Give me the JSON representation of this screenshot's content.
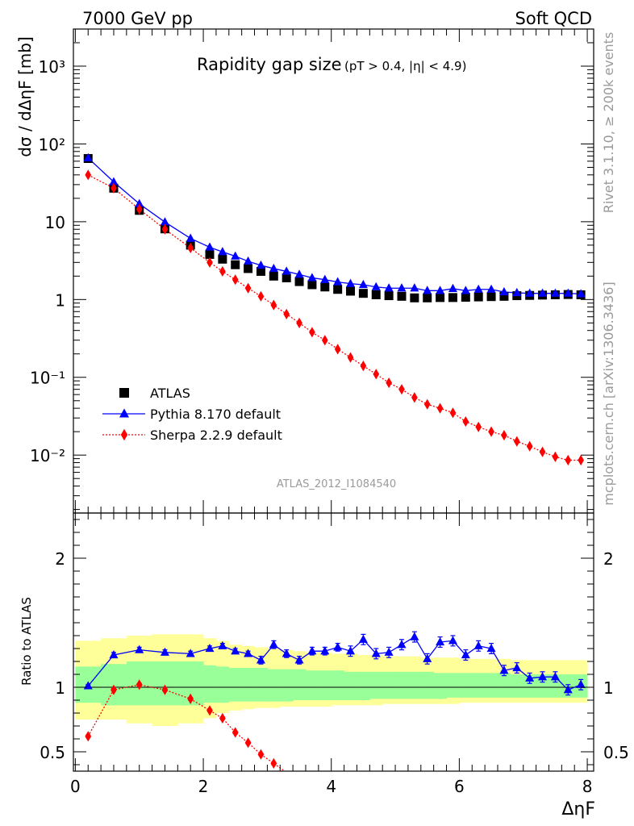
{
  "header": {
    "energy_label": "7000 GeV pp",
    "process_label": "Soft QCD",
    "rivet_label": "Rivet 3.1.10, ≥ 200k events",
    "mcplots_label": "mcplots.cern.ch [arXiv:1306.3436]",
    "analysis_label": "ATLAS_2012_I1084540"
  },
  "chart_data": [
    {
      "panel": "main",
      "type": "scatter",
      "title_main": "Rapidity gap size",
      "title_cuts": "(pT > 0.4, |η| < 4.9)",
      "ylabel": "dσ / dΔηF [mb]",
      "yscale": "log",
      "ylim": [
        0.0018,
        3000
      ],
      "xlim": [
        -0.03,
        8.1
      ],
      "y_tick_labels": [
        "10⁻²",
        "10⁻¹",
        "1",
        "10",
        "10²",
        "10³"
      ],
      "y_tick_values": [
        0.01,
        0.1,
        1,
        10,
        100,
        1000
      ],
      "legend_position": "lower-left",
      "series": [
        {
          "name": "ATLAS",
          "color": "#000000",
          "marker": "square",
          "x": [
            0.2,
            0.6,
            1.0,
            1.4,
            1.8,
            2.1,
            2.3,
            2.5,
            2.7,
            2.9,
            3.1,
            3.3,
            3.5,
            3.7,
            3.9,
            4.1,
            4.3,
            4.5,
            4.7,
            4.9,
            5.1,
            5.3,
            5.5,
            5.7,
            5.9,
            6.1,
            6.3,
            6.5,
            6.7,
            6.9,
            7.1,
            7.3,
            7.5,
            7.7,
            7.9
          ],
          "y": [
            65,
            27,
            14,
            8.1,
            5.0,
            3.8,
            3.3,
            2.8,
            2.5,
            2.3,
            2.0,
            1.9,
            1.7,
            1.55,
            1.45,
            1.35,
            1.28,
            1.2,
            1.15,
            1.12,
            1.1,
            1.05,
            1.05,
            1.06,
            1.06,
            1.07,
            1.08,
            1.09,
            1.1,
            1.12,
            1.13,
            1.14,
            1.15,
            1.16,
            1.15
          ]
        },
        {
          "name": "Pythia 8.170 default",
          "color": "#0000ff",
          "marker": "triangle",
          "line": "solid",
          "x": [
            0.2,
            0.6,
            1.0,
            1.4,
            1.8,
            2.1,
            2.3,
            2.5,
            2.7,
            2.9,
            3.1,
            3.3,
            3.5,
            3.7,
            3.9,
            4.1,
            4.3,
            4.5,
            4.7,
            4.9,
            5.1,
            5.3,
            5.5,
            5.7,
            5.9,
            6.1,
            6.3,
            6.5,
            6.7,
            6.9,
            7.1,
            7.3,
            7.5,
            7.7,
            7.9
          ],
          "y": [
            66,
            32.5,
            17,
            9.9,
            6.1,
            4.7,
            4.1,
            3.6,
            3.1,
            2.75,
            2.5,
            2.3,
            2.1,
            1.9,
            1.8,
            1.68,
            1.6,
            1.55,
            1.45,
            1.4,
            1.4,
            1.4,
            1.3,
            1.3,
            1.38,
            1.3,
            1.35,
            1.35,
            1.25,
            1.22,
            1.2,
            1.2,
            1.2,
            1.2,
            1.18
          ]
        },
        {
          "name": "Sherpa 2.2.9 default",
          "color": "#ff0000",
          "marker": "diamond",
          "line": "dotted",
          "x": [
            0.2,
            0.6,
            1.0,
            1.4,
            1.8,
            2.1,
            2.3,
            2.5,
            2.7,
            2.9,
            3.1,
            3.3,
            3.5,
            3.7,
            3.9,
            4.1,
            4.3,
            4.5,
            4.7,
            4.9,
            5.1,
            5.3,
            5.5,
            5.7,
            5.9,
            6.1,
            6.3,
            6.5,
            6.7,
            6.9,
            7.1,
            7.3,
            7.5,
            7.7,
            7.9
          ],
          "y": [
            40,
            27,
            14.5,
            8.0,
            4.6,
            3.0,
            2.3,
            1.8,
            1.4,
            1.1,
            0.85,
            0.65,
            0.5,
            0.38,
            0.3,
            0.23,
            0.18,
            0.14,
            0.11,
            0.085,
            0.07,
            0.055,
            0.045,
            0.04,
            0.035,
            0.027,
            0.023,
            0.02,
            0.018,
            0.015,
            0.013,
            0.011,
            0.0095,
            0.0086,
            0.0086
          ]
        }
      ]
    },
    {
      "panel": "ratio",
      "type": "line",
      "ylabel": "Ratio to ATLAS",
      "xlabel": "ΔηF",
      "ylim": [
        0.35,
        2.35
      ],
      "xlim": [
        -0.03,
        8.1
      ],
      "x_tick_labels": [
        "0",
        "2",
        "4",
        "6",
        "8"
      ],
      "x_tick_values": [
        0,
        2,
        4,
        6,
        8
      ],
      "y_tick_labels": [
        "0.5",
        "1",
        "2"
      ],
      "y_tick_values": [
        0.5,
        1,
        2
      ],
      "bins": [
        0,
        0.4,
        0.8,
        1.2,
        1.6,
        2.0,
        2.2,
        2.4,
        2.6,
        2.8,
        3.0,
        3.2,
        3.4,
        3.6,
        3.8,
        4.0,
        4.2,
        4.4,
        4.6,
        4.8,
        5.0,
        5.2,
        5.4,
        5.6,
        5.8,
        6.0,
        6.2,
        6.4,
        6.6,
        6.8,
        7.0,
        7.2,
        7.4,
        7.6,
        7.8,
        8.0
      ],
      "band_inner_lo": [
        0.88,
        0.86,
        0.86,
        0.86,
        0.86,
        0.88,
        0.88,
        0.89,
        0.89,
        0.89,
        0.89,
        0.89,
        0.9,
        0.9,
        0.9,
        0.9,
        0.9,
        0.9,
        0.91,
        0.91,
        0.91,
        0.91,
        0.91,
        0.91,
        0.92,
        0.92,
        0.92,
        0.92,
        0.92,
        0.92,
        0.92,
        0.92,
        0.92,
        0.92,
        0.92
      ],
      "band_inner_hi": [
        1.16,
        1.18,
        1.2,
        1.2,
        1.2,
        1.17,
        1.16,
        1.15,
        1.15,
        1.15,
        1.14,
        1.14,
        1.14,
        1.13,
        1.13,
        1.13,
        1.12,
        1.12,
        1.12,
        1.12,
        1.12,
        1.12,
        1.12,
        1.11,
        1.11,
        1.11,
        1.11,
        1.11,
        1.11,
        1.1,
        1.1,
        1.1,
        1.1,
        1.1,
        1.1
      ],
      "band_outer_lo": [
        0.75,
        0.75,
        0.72,
        0.7,
        0.72,
        0.76,
        0.8,
        0.82,
        0.83,
        0.84,
        0.84,
        0.85,
        0.85,
        0.85,
        0.85,
        0.86,
        0.86,
        0.86,
        0.86,
        0.87,
        0.87,
        0.87,
        0.87,
        0.87,
        0.87,
        0.88,
        0.88,
        0.88,
        0.88,
        0.88,
        0.88,
        0.88,
        0.88,
        0.88,
        0.88
      ],
      "band_outer_hi": [
        1.36,
        1.38,
        1.4,
        1.41,
        1.41,
        1.38,
        1.36,
        1.33,
        1.32,
        1.31,
        1.3,
        1.29,
        1.28,
        1.27,
        1.27,
        1.26,
        1.26,
        1.25,
        1.25,
        1.24,
        1.24,
        1.24,
        1.23,
        1.23,
        1.23,
        1.22,
        1.22,
        1.22,
        1.22,
        1.21,
        1.21,
        1.21,
        1.21,
        1.21,
        1.21
      ],
      "series": [
        {
          "name": "Pythia 8.170 default",
          "color": "#0000ff",
          "marker": "triangle",
          "x": [
            0.2,
            0.6,
            1.0,
            1.4,
            1.8,
            2.1,
            2.3,
            2.5,
            2.7,
            2.9,
            3.1,
            3.3,
            3.5,
            3.7,
            3.9,
            4.1,
            4.3,
            4.5,
            4.7,
            4.9,
            5.1,
            5.3,
            5.5,
            5.7,
            5.9,
            6.1,
            6.3,
            6.5,
            6.7,
            6.9,
            7.1,
            7.3,
            7.5,
            7.7,
            7.9
          ],
          "y": [
            1.01,
            1.25,
            1.29,
            1.27,
            1.26,
            1.3,
            1.32,
            1.28,
            1.26,
            1.21,
            1.33,
            1.26,
            1.21,
            1.28,
            1.28,
            1.31,
            1.28,
            1.37,
            1.26,
            1.27,
            1.33,
            1.39,
            1.22,
            1.35,
            1.36,
            1.25,
            1.32,
            1.3,
            1.13,
            1.15,
            1.07,
            1.08,
            1.08,
            0.98,
            1.02
          ],
          "err": [
            0.01,
            0.02,
            0.02,
            0.02,
            0.02,
            0.02,
            0.02,
            0.02,
            0.02,
            0.03,
            0.03,
            0.03,
            0.03,
            0.03,
            0.03,
            0.03,
            0.04,
            0.04,
            0.04,
            0.04,
            0.04,
            0.04,
            0.04,
            0.04,
            0.04,
            0.04,
            0.04,
            0.04,
            0.04,
            0.04,
            0.04,
            0.04,
            0.04,
            0.04,
            0.04
          ]
        },
        {
          "name": "Sherpa 2.2.9 default",
          "color": "#ff0000",
          "marker": "diamond",
          "x": [
            0.2,
            0.6,
            1.0,
            1.4,
            1.8,
            2.1,
            2.3,
            2.5,
            2.7,
            2.9,
            3.1
          ],
          "y": [
            0.62,
            0.98,
            1.02,
            0.98,
            0.91,
            0.82,
            0.76,
            0.65,
            0.57,
            0.48,
            0.41
          ],
          "err": [
            0.01,
            0.01,
            0.01,
            0.01,
            0.01,
            0.01,
            0.01,
            0.01,
            0.01,
            0.01,
            0.01
          ]
        }
      ]
    }
  ]
}
